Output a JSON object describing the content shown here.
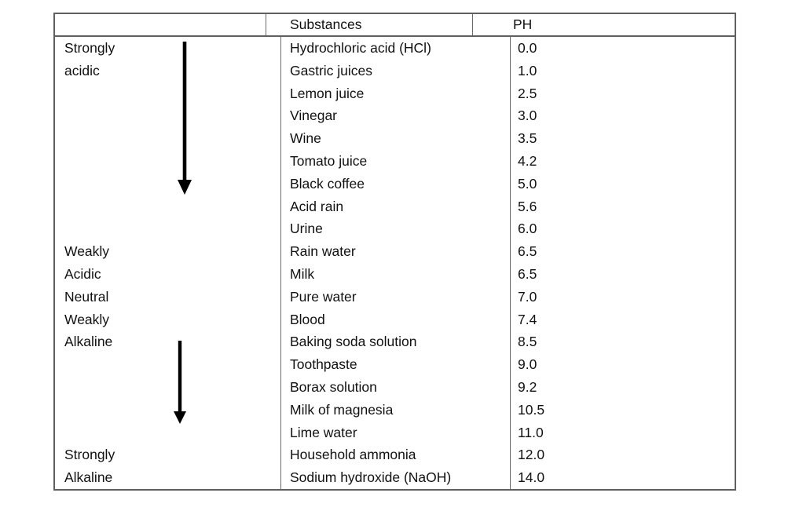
{
  "colors": {
    "border": "#5f5f5f",
    "inner_lines": "#6a6a6a",
    "text": "#111111",
    "arrow": "#000000",
    "background": "#ffffff"
  },
  "table": {
    "header": {
      "zone": "",
      "substances": "Substances",
      "ph": "PH"
    },
    "rows": [
      {
        "zone": "Strongly",
        "substance": "Hydrochloric acid (HCl)",
        "ph": "0.0"
      },
      {
        "zone": "acidic",
        "substance": "Gastric juices",
        "ph": "1.0"
      },
      {
        "zone": "",
        "substance": "Lemon juice",
        "ph": "2.5"
      },
      {
        "zone": "",
        "substance": "Vinegar",
        "ph": "3.0"
      },
      {
        "zone": "",
        "substance": "Wine",
        "ph": "3.5"
      },
      {
        "zone": "",
        "substance": "Tomato juice",
        "ph": "4.2"
      },
      {
        "zone": "",
        "substance": "Black coffee",
        "ph": "5.0"
      },
      {
        "zone": "",
        "substance": "Acid rain",
        "ph": "5.6"
      },
      {
        "zone": "",
        "substance": "Urine",
        "ph": "6.0"
      },
      {
        "zone": "Weakly",
        "substance": "Rain water",
        "ph": "6.5"
      },
      {
        "zone": "Acidic",
        "substance": "Milk",
        "ph": "6.5"
      },
      {
        "zone": "Neutral",
        "substance": "Pure water",
        "ph": "7.0"
      },
      {
        "zone": "Weakly",
        "substance": "Blood",
        "ph": "7.4"
      },
      {
        "zone": "Alkaline",
        "substance": "Baking soda solution",
        "ph": "8.5"
      },
      {
        "zone": "",
        "substance": "Toothpaste",
        "ph": "9.0"
      },
      {
        "zone": "",
        "substance": "Borax solution",
        "ph": "9.2"
      },
      {
        "zone": "",
        "substance": "Milk of magnesia",
        "ph": "10.5"
      },
      {
        "zone": "",
        "substance": "Lime water",
        "ph": "11.0"
      },
      {
        "zone": "Strongly",
        "substance": "Household ammonia",
        "ph": "12.0"
      },
      {
        "zone": "Alkaline",
        "substance": "Sodium hydroxide (NaOH)",
        "ph": "14.0"
      }
    ]
  },
  "arrows": [
    {
      "name": "acidic-down-arrow",
      "direction": "down"
    },
    {
      "name": "alkaline-down-arrow",
      "direction": "down"
    }
  ]
}
